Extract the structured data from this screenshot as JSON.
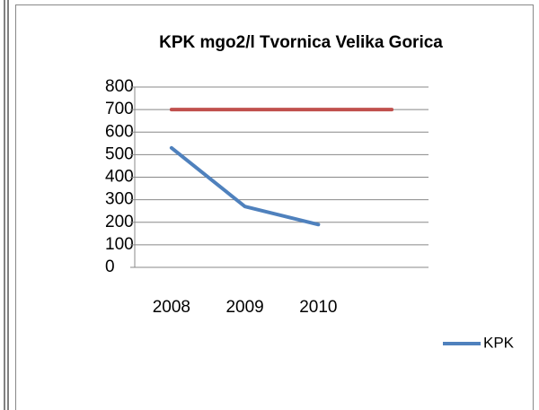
{
  "chart_data": {
    "type": "line",
    "title": "KPK mgo2/l Tvornica Velika Gorica",
    "categories": [
      "2008",
      "2009",
      "2010",
      null
    ],
    "series": [
      {
        "name": "KPK",
        "color": "#4f81bd",
        "values": [
          530,
          270,
          190,
          null
        ]
      },
      {
        "color": "#c0504d",
        "values": [
          700,
          700,
          700,
          700
        ]
      }
    ],
    "ylim": [
      0,
      800
    ],
    "yticks": [
      0,
      100,
      200,
      300,
      400,
      500,
      600,
      700,
      800
    ],
    "grid": true,
    "legend": "right"
  }
}
